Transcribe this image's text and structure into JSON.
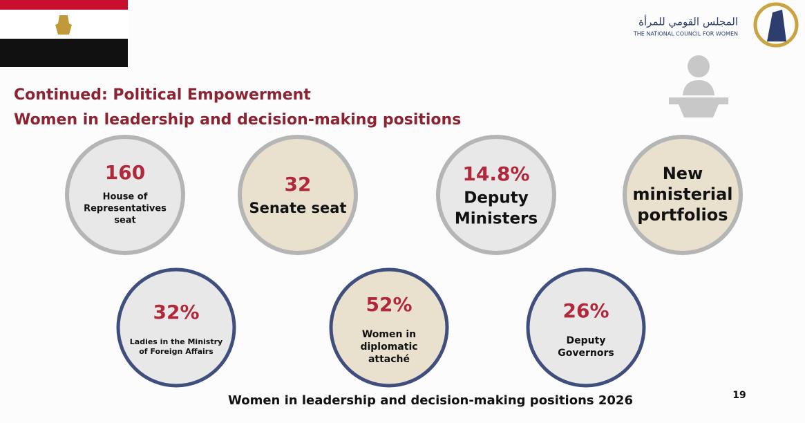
{
  "header": {
    "logo_arabic": "المجلس القومي للمرأة",
    "logo_english": "THE NATIONAL COUNCIL FOR WOMEN"
  },
  "title": [
    "Continued: Political Empowerment",
    "Women in leadership and decision-making positions"
  ],
  "circles": [
    {
      "value": "160",
      "label": [
        "House of",
        "Representatives",
        "seat"
      ],
      "style": "gray"
    },
    {
      "value": "32",
      "label": [
        "Senate seat"
      ],
      "style": "beige"
    },
    {
      "value": "14.8%",
      "label": [
        "Deputy",
        "Ministers"
      ],
      "style": "gray"
    },
    {
      "value": "New",
      "label": [
        "ministerial",
        "portfolios"
      ],
      "style": "beige"
    },
    {
      "value": "32%",
      "label": [
        "Ladies in the Ministry",
        "of Foreign Affairs"
      ],
      "style": "gray"
    },
    {
      "value": "52%",
      "label": [
        "Women in",
        "diplomatic",
        "attaché"
      ],
      "style": "beige"
    },
    {
      "value": "26%",
      "label": [
        "Deputy",
        "Governors"
      ],
      "style": "gray"
    }
  ],
  "footer": "Women in leadership and decision-making positions 2026",
  "page_number": "19"
}
